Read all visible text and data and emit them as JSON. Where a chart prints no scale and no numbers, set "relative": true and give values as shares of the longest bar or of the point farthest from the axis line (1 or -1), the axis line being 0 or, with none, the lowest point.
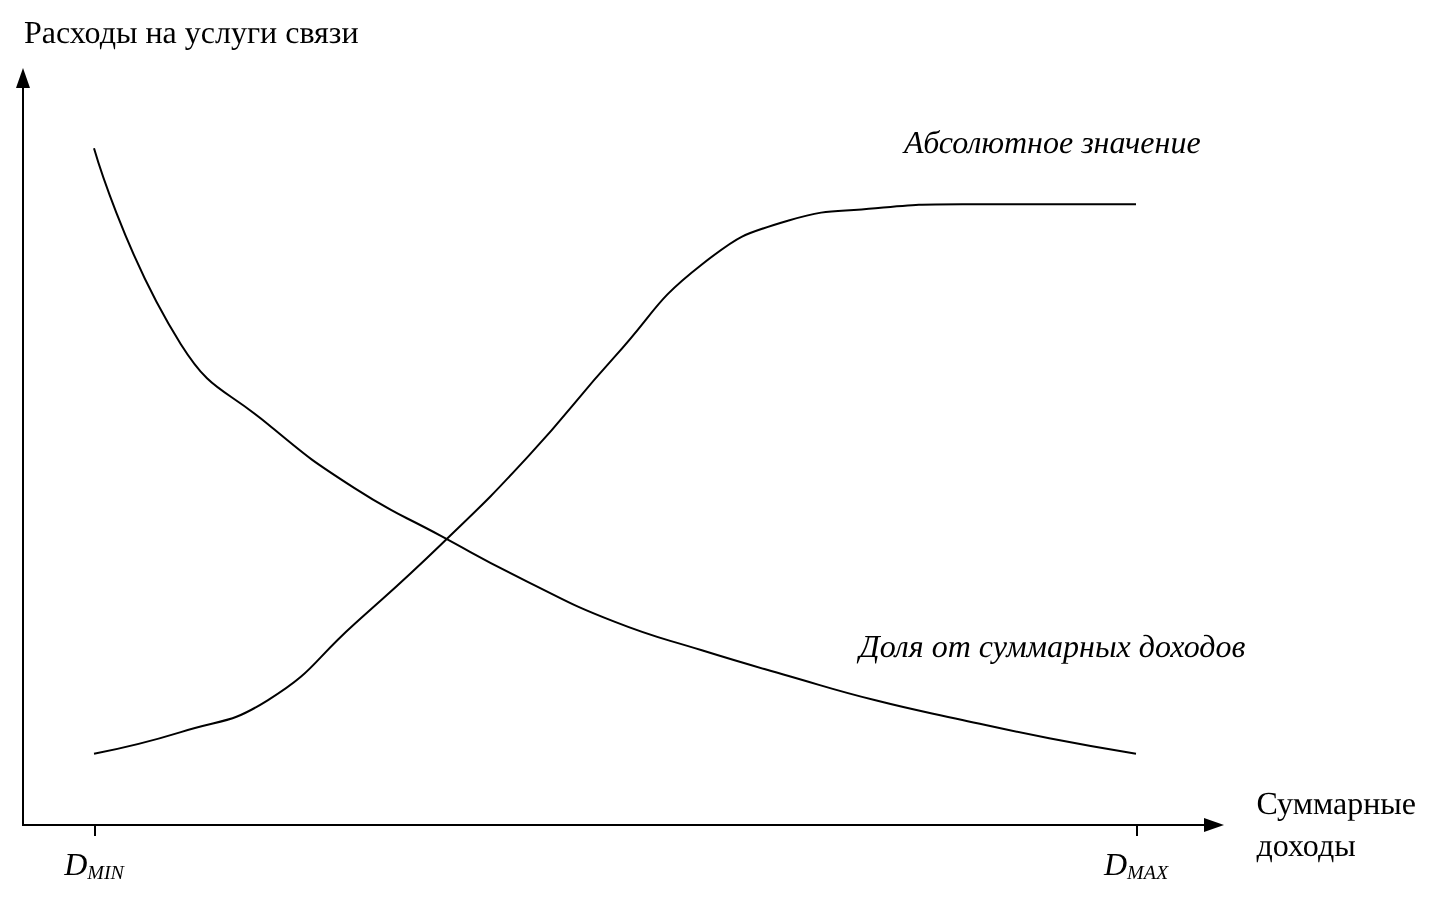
{
  "chart_data": {
    "type": "line",
    "relative": true,
    "ylabel": "Расходы на услуги связи",
    "xlabel": "Суммарные доходы",
    "categories": [
      "D$_{MIN}$",
      null,
      null,
      null,
      null,
      null,
      null,
      null,
      null,
      null,
      null,
      null,
      "D$_{MAX}$"
    ],
    "grid": false,
    "legend": false,
    "marker": "none",
    "line_style": "solid",
    "color": "#000000",
    "series": [
      {
        "name": "Абсолютное значение",
        "values": [
          0.104,
          0.136,
          0.183,
          0.296,
          0.414,
          0.544,
          0.692,
          0.828,
          0.893,
          0.911,
          0.917,
          0.917,
          0.917
        ]
      },
      {
        "name": "Доля от суммарных доходов",
        "values": [
          1,
          0.71,
          0.592,
          0.497,
          0.426,
          0.358,
          0.299,
          0.257,
          0.219,
          0.183,
          0.154,
          0.127,
          0.104
        ]
      }
    ]
  }
}
